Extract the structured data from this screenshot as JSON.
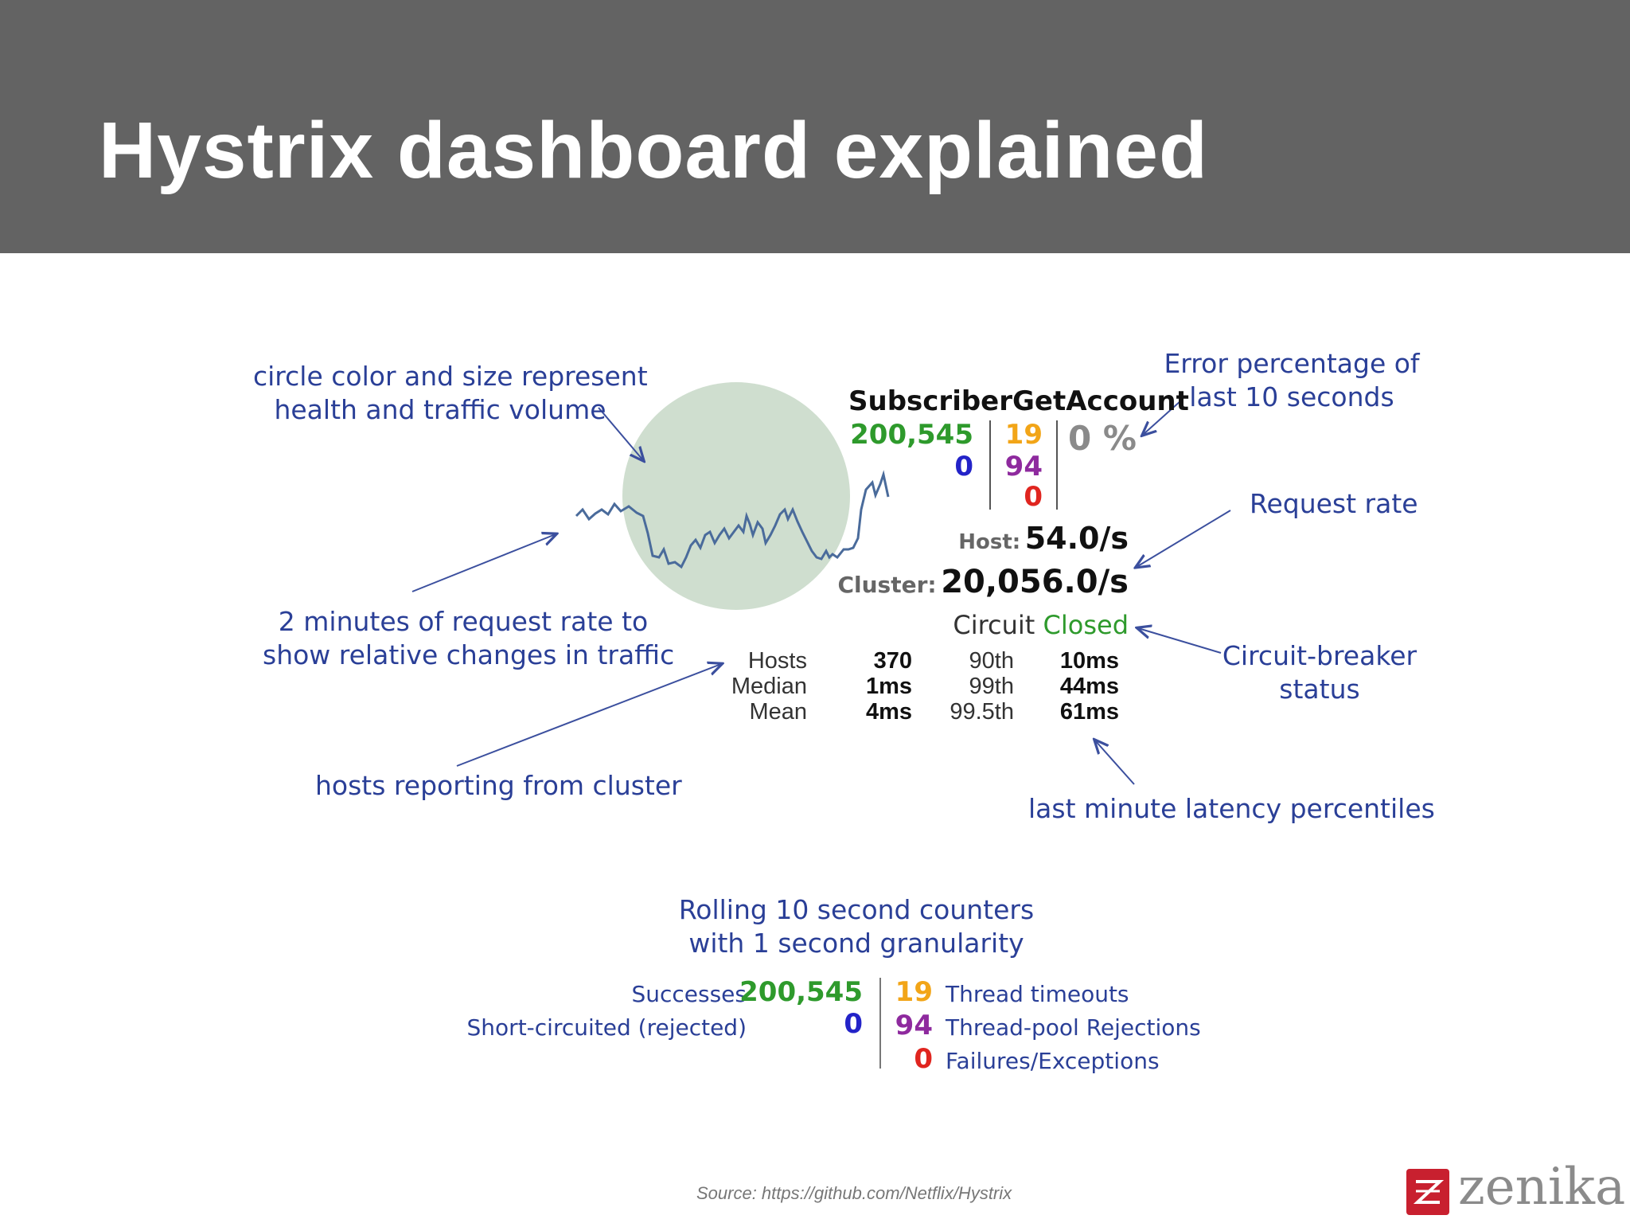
{
  "title": "Hystrix dashboard explained",
  "annotations": {
    "circle": [
      "circle color and size represent",
      "health and traffic volume"
    ],
    "request_rate_graph": [
      "2 minutes of request rate to",
      "show relative changes in traffic"
    ],
    "hosts": "hosts reporting from cluster",
    "error_percentage": [
      "Error percentage of",
      "last 10 seconds"
    ],
    "request_rate": "Request rate",
    "circuit_breaker": [
      "Circuit-breaker",
      "status"
    ],
    "latency": "last minute latency percentiles",
    "rolling": [
      "Rolling 10 second counters",
      "with 1 second granularity"
    ]
  },
  "command": {
    "name": "SubscriberGetAccount",
    "successes": "200,545",
    "short_circuited": "0",
    "timeouts": "19",
    "rejections": "94",
    "failures": "0",
    "error_pct": "0 %",
    "host_label": "Host:",
    "host_rate": "54.0/s",
    "cluster_label": "Cluster:",
    "cluster_rate": "20,056.0/s",
    "circuit_label": "Circuit",
    "circuit_status": "Closed"
  },
  "latency_table": {
    "labels": [
      "Hosts",
      "Median",
      "Mean"
    ],
    "values": [
      "370",
      "1ms",
      "4ms"
    ],
    "percentiles": [
      "90th",
      "99th",
      "99.5th"
    ],
    "percentile_values": [
      "10ms",
      "44ms",
      "61ms"
    ]
  },
  "legend": {
    "successes_label": "Successes",
    "successes_value": "200,545",
    "short_label": "Short-circuited (rejected)",
    "short_value": "0",
    "timeouts_value": "19",
    "timeouts_label": "Thread timeouts",
    "rejections_value": "94",
    "rejections_label": "Thread-pool Rejections",
    "failures_value": "0",
    "failures_label": "Failures/Exceptions"
  },
  "colors": {
    "success": "#2e9a2c",
    "short": "#2323c8",
    "timeout": "#f2a518",
    "rejection": "#8e2a9e",
    "failure": "#e0251f",
    "error_pct": "#8a8a8a",
    "annotation": "#2a3f97",
    "circle": "#cfdecf",
    "header": "#636363"
  },
  "source": "Source: https://github.com/Netflix/Hystrix",
  "logo": "zenika"
}
